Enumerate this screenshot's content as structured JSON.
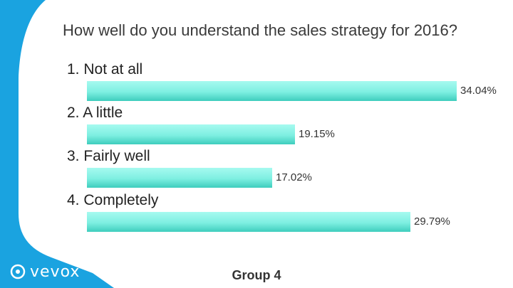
{
  "slide": {
    "brand": "vevox",
    "group_label": "Group 4",
    "colors": {
      "accent_blue": "#1aa3e0",
      "bar": "#7eefe1"
    }
  },
  "chart_data": {
    "type": "bar",
    "orientation": "horizontal",
    "title": "How well do you understand the sales strategy for 2016?",
    "categories": [
      "1. Not at all",
      "2. A little",
      "3. Fairly well",
      "4. Completely"
    ],
    "values": [
      34.04,
      19.15,
      17.02,
      29.79
    ],
    "value_labels": [
      "34.04%",
      "19.15%",
      "17.02%",
      "29.79%"
    ],
    "unit": "%",
    "xlim": [
      0,
      34.04
    ],
    "grid": false,
    "legend": "none"
  }
}
